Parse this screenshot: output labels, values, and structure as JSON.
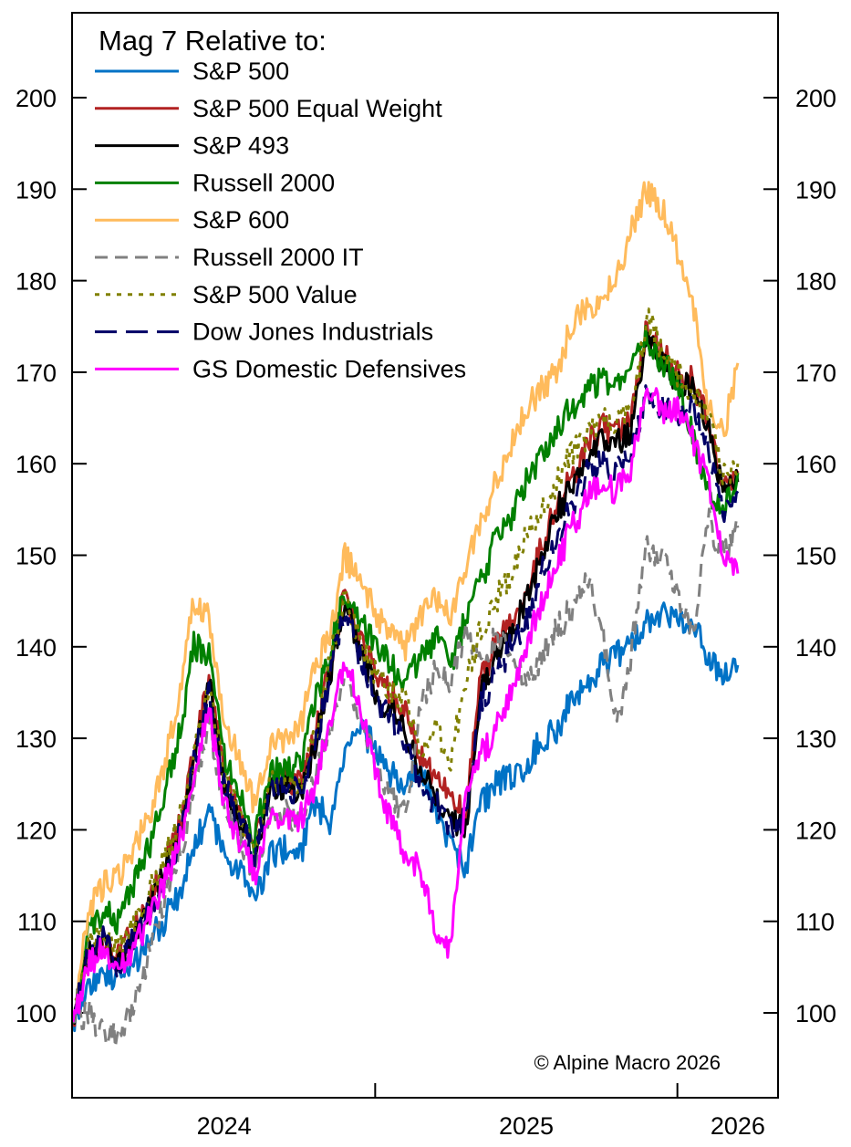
{
  "chart_data": {
    "type": "line",
    "title": "",
    "legend_title": "Mag 7 Relative to:",
    "legend_position": "top-left",
    "credit": "© Alpine Macro 2026",
    "xlabel": "",
    "ylabel": "",
    "ylim": [
      91,
      211
    ],
    "yticks": [
      100,
      110,
      120,
      130,
      140,
      150,
      160,
      170,
      180,
      190,
      200
    ],
    "ytick_labels": [
      "100",
      "110",
      "120",
      "130",
      "140",
      "150",
      "160",
      "170",
      "180",
      "190",
      "200"
    ],
    "xlim": [
      2023.5,
      2025.83
    ],
    "xtick_labels": [
      {
        "label": "2024",
        "pos": 2024.0
      },
      {
        "label": "2025",
        "pos": 2025.0
      },
      {
        "label": "2026",
        "pos": 2025.7
      }
    ],
    "xtick_marks": [
      2024.5,
      2025.5
    ],
    "x": [
      2023.5,
      2023.55,
      2023.6,
      2023.65,
      2023.7,
      2023.75,
      2023.8,
      2023.85,
      2023.9,
      2023.95,
      2024.0,
      2024.05,
      2024.1,
      2024.15,
      2024.2,
      2024.25,
      2024.3,
      2024.35,
      2024.4,
      2024.45,
      2024.5,
      2024.55,
      2024.6,
      2024.65,
      2024.7,
      2024.75,
      2024.8,
      2024.85,
      2024.9,
      2024.95,
      2025.0,
      2025.05,
      2025.1,
      2025.15,
      2025.2,
      2025.25,
      2025.3,
      2025.35,
      2025.4,
      2025.45,
      2025.5,
      2025.55,
      2025.6,
      2025.65,
      2025.7
    ],
    "series": [
      {
        "name": "S&P 500",
        "color": "#0072c6",
        "dash": "solid",
        "values": [
          99,
          103,
          104,
          104,
          105,
          108,
          110,
          113,
          118,
          122,
          117,
          116,
          112,
          117,
          118,
          117,
          123,
          121,
          128,
          131,
          129,
          126,
          125,
          127,
          122,
          118,
          116,
          123,
          125,
          126,
          127,
          130,
          131,
          134,
          136,
          138,
          139,
          140,
          143,
          144,
          143,
          143,
          139,
          137,
          138
        ]
      },
      {
        "name": "S&P 500 Equal Weight",
        "color": "#b22222",
        "dash": "solid",
        "values": [
          99,
          106,
          108,
          106,
          109,
          112,
          116,
          120,
          128,
          137,
          126,
          122,
          118,
          125,
          126,
          125,
          130,
          138,
          146,
          141,
          137,
          135,
          133,
          128,
          126,
          123,
          122,
          137,
          140,
          143,
          146,
          151,
          156,
          158,
          162,
          164,
          163,
          165,
          175,
          172,
          170,
          169,
          165,
          158,
          159
        ]
      },
      {
        "name": "S&P 493",
        "color": "#000000",
        "dash": "solid",
        "values": [
          99,
          106,
          108,
          105,
          108,
          111,
          115,
          119,
          127,
          136,
          125,
          121,
          117,
          124,
          125,
          124,
          129,
          137,
          145,
          140,
          135,
          133,
          131,
          126,
          124,
          121,
          120,
          136,
          139,
          142,
          145,
          150,
          155,
          157,
          161,
          163,
          162,
          164,
          174,
          171,
          169,
          168,
          164,
          157,
          158
        ]
      },
      {
        "name": "Russell 2000",
        "color": "#008000",
        "dash": "solid",
        "values": [
          99,
          109,
          111,
          110,
          114,
          118,
          124,
          130,
          140,
          139,
          128,
          124,
          119,
          126,
          127,
          127,
          134,
          139,
          146,
          143,
          140,
          138,
          136,
          139,
          141,
          138,
          143,
          147,
          152,
          154,
          158,
          161,
          164,
          166,
          168,
          169,
          168,
          170,
          174,
          171,
          169,
          163,
          157,
          155,
          159
        ]
      },
      {
        "name": "S&P 600",
        "color": "#ffbb5c",
        "dash": "solid",
        "values": [
          99,
          111,
          114,
          115,
          118,
          121,
          127,
          134,
          145,
          143,
          131,
          128,
          123,
          129,
          130,
          131,
          138,
          141,
          150,
          147,
          144,
          141,
          140,
          143,
          145,
          143,
          149,
          154,
          158,
          162,
          166,
          168,
          170,
          175,
          177,
          178,
          180,
          186,
          190,
          188,
          183,
          178,
          167,
          163,
          171
        ]
      },
      {
        "name": "Russell 2000 IT",
        "color": "#808080",
        "dash": "dash",
        "values": [
          99,
          100,
          98,
          97,
          101,
          106,
          112,
          117,
          124,
          132,
          123,
          119,
          115,
          121,
          122,
          121,
          126,
          131,
          137,
          133,
          127,
          124,
          122,
          133,
          138,
          136,
          142,
          139,
          141,
          140,
          136,
          139,
          142,
          144,
          148,
          142,
          131,
          140,
          151,
          150,
          146,
          141,
          154,
          150,
          153
        ]
      },
      {
        "name": "S&P 500 Value",
        "color": "#808000",
        "dash": "dot",
        "values": [
          99,
          107,
          109,
          107,
          110,
          113,
          117,
          121,
          128,
          136,
          126,
          122,
          118,
          125,
          126,
          125,
          130,
          138,
          146,
          141,
          137,
          135,
          134,
          129,
          131,
          128,
          136,
          142,
          145,
          148,
          152,
          155,
          158,
          161,
          163,
          165,
          164,
          166,
          176,
          172,
          170,
          168,
          165,
          159,
          160
        ]
      },
      {
        "name": "Dow Jones Industrials",
        "color": "#000066",
        "dash": "longdash",
        "values": [
          99,
          106,
          108,
          105,
          108,
          111,
          114,
          119,
          127,
          135,
          125,
          121,
          117,
          124,
          125,
          124,
          129,
          137,
          144,
          139,
          134,
          132,
          130,
          125,
          123,
          120,
          121,
          134,
          137,
          140,
          143,
          148,
          152,
          155,
          159,
          160,
          159,
          161,
          168,
          166,
          165,
          166,
          162,
          155,
          157
        ]
      },
      {
        "name": "GS Domestic Defensives",
        "color": "#ff00ff",
        "dash": "solid",
        "values": [
          99,
          105,
          107,
          104,
          107,
          110,
          114,
          118,
          126,
          133,
          123,
          119,
          115,
          121,
          122,
          121,
          125,
          132,
          139,
          134,
          126,
          121,
          117,
          116,
          109,
          107,
          124,
          128,
          131,
          135,
          140,
          145,
          149,
          153,
          156,
          158,
          157,
          160,
          169,
          166,
          166,
          163,
          158,
          150,
          148
        ]
      }
    ]
  }
}
